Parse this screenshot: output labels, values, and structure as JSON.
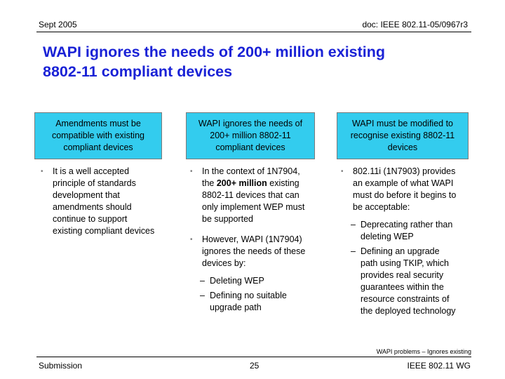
{
  "header": {
    "date": "Sept 2005",
    "doc_id": "doc: IEEE 802.11-05/0967r3"
  },
  "title": {
    "line1": "WAPI ignores the needs of 200+ million existing",
    "line2": "8802-11 compliant devices"
  },
  "columns": [
    {
      "heading": "Amendments must be compatible with existing compliant devices",
      "bullets": [
        {
          "text": "It is a well accepted principle of standards development that amendments should continue to support existing compliant devices"
        }
      ]
    },
    {
      "heading": "WAPI ignores the needs of 200+ million 8802-11 compliant devices",
      "bullet1": "In the context of 1N7904, the 200+ million existing 8802-11 devices that can only implement WEP must be supported",
      "bullet1_pre": "In the context of 1N7904, the ",
      "bullet1_bold": "200+ million",
      "bullet1_post": " existing 8802-11 devices that can only implement WEP must be supported",
      "bullet2": "However, WAPI (1N7904) ignores the needs of these devices by:",
      "subs": [
        "Deleting WEP",
        "Defining no suitable upgrade path"
      ]
    },
    {
      "heading": "WAPI must be modified to recognise existing 8802-11 devices",
      "bullet1": "802.11i (1N7903) provides an example of what WAPI must do before it begins to be acceptable:",
      "subs": [
        "Deprecating rather than deleting WEP",
        "Defining an upgrade path using TKIP, which provides real security guarantees within the resource constraints of the deployed technology"
      ]
    }
  ],
  "footer": {
    "note": "WAPI problems – Ignores existing",
    "left": "Submission",
    "page": "25",
    "right": "IEEE 802.11 WG"
  }
}
